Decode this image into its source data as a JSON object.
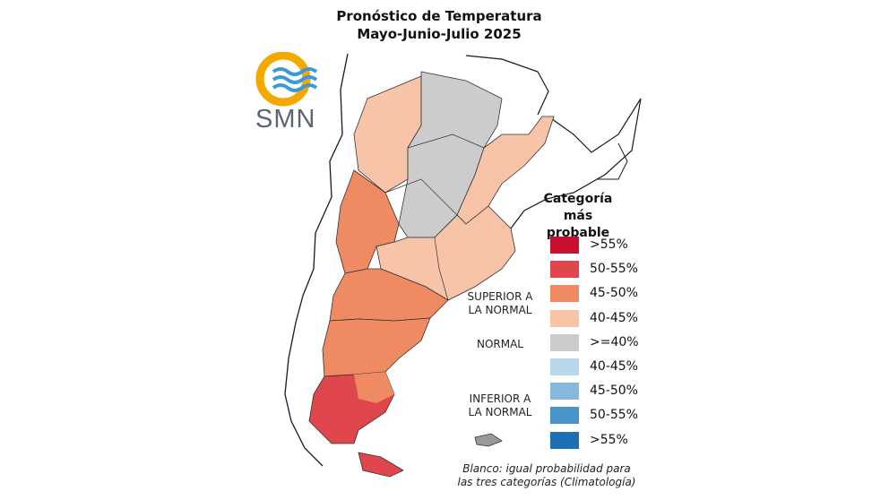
{
  "title": {
    "line1": "Pronóstico de Temperatura",
    "line2": "Mayo-Junio-Julio 2025"
  },
  "logo": {
    "text": "SMN",
    "sun_color": "#f5a800",
    "wave_color": "#3a9ad9"
  },
  "legend": {
    "title_line1": "Categoría más",
    "title_line2": "probable",
    "items": [
      {
        "label": ">55%",
        "color": "#c8102e"
      },
      {
        "label": "50-55%",
        "color": "#e0474c"
      },
      {
        "label": "45-50%",
        "color": "#ef8a62"
      },
      {
        "label": "40-45%",
        "color": "#f8c4a8"
      },
      {
        "label": ">=40%",
        "color": "#cccccc"
      },
      {
        "label": "40-45%",
        "color": "#b9d7ea"
      },
      {
        "label": "45-50%",
        "color": "#86b8dc"
      },
      {
        "label": "50-55%",
        "color": "#4a93c9"
      },
      {
        "label": ">55%",
        "color": "#1f6fb5"
      }
    ],
    "categories": {
      "superior_line1": "SUPERIOR A",
      "superior_line2": "LA NORMAL",
      "normal": "NORMAL",
      "inferior_line1": "INFERIOR A",
      "inferior_line2": "LA NORMAL"
    }
  },
  "footnote": {
    "line1": "Blanco: igual probabilidad para",
    "line2": "las tres categorías (Climatología)"
  },
  "colors": {
    "border": "#222222",
    "coast": "#1a1a1a"
  }
}
